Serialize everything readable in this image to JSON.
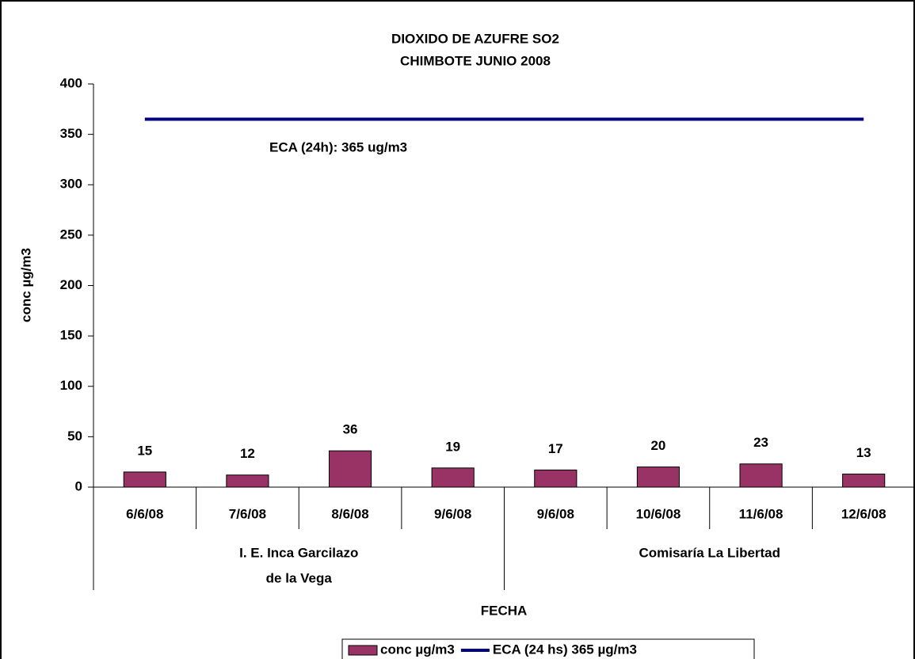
{
  "chart_data": {
    "type": "bar",
    "title": "DIOXIDO DE AZUFRE SO2",
    "subtitle": "CHIMBOTE JUNIO 2008",
    "y_label": "conc µg/m3",
    "x_label": "FECHA",
    "annotation": "ECA (24h): 365 ug/m3",
    "groups": [
      {
        "name": [
          "I. E. Inca Garcilazo",
          "de la Vega"
        ],
        "categories": [
          "6/6/08",
          "7/6/08",
          "8/6/08",
          "9/6/08"
        ]
      },
      {
        "name": [
          "Comisaría La Libertad"
        ],
        "categories": [
          "9/6/08",
          "10/6/08",
          "11/6/08",
          "12/6/08"
        ]
      }
    ],
    "series": [
      {
        "name": "conc µg/m3",
        "type": "bar",
        "color": "#993366",
        "values": [
          15,
          12,
          36,
          19,
          17,
          20,
          23,
          13
        ]
      },
      {
        "name": "ECA (24 hs) 365 µg/m3",
        "type": "line",
        "color": "#000080",
        "values": [
          365,
          365,
          365,
          365,
          365,
          365,
          365,
          365
        ]
      }
    ],
    "ylim": [
      0,
      400
    ],
    "yticks": [
      0,
      50,
      100,
      150,
      200,
      250,
      300,
      350,
      400
    ],
    "legend": "bottom"
  }
}
